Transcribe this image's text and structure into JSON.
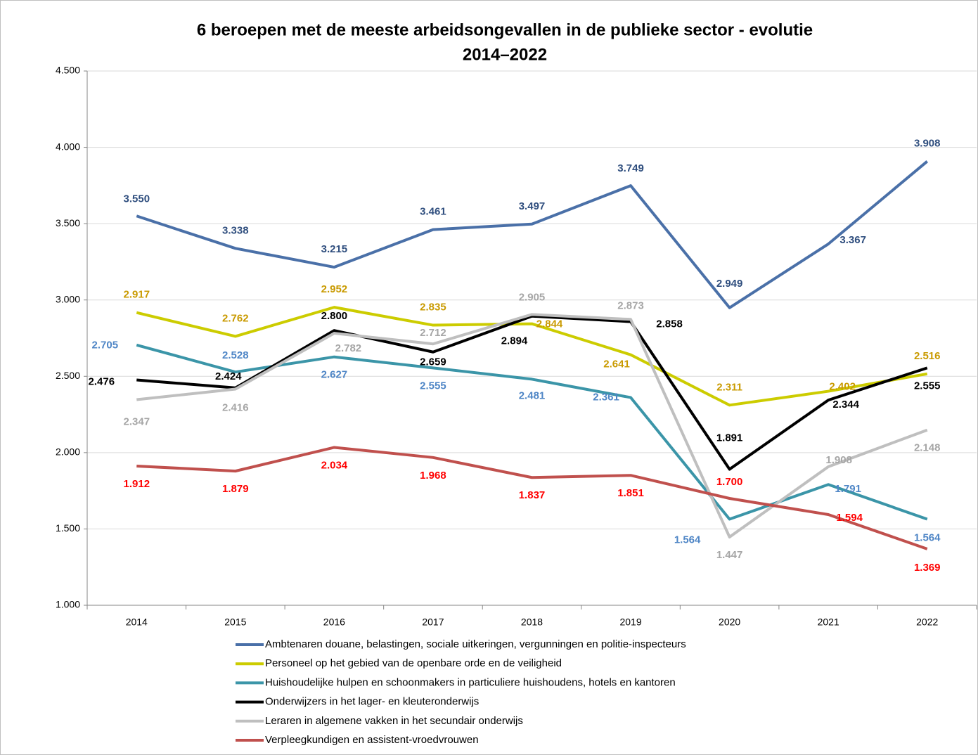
{
  "chart_data": {
    "type": "line",
    "title": [
      "6 beroepen met de meeste arbeidsongevallen in de publieke sector - evolutie",
      "2014–2022"
    ],
    "categories": [
      "2014",
      "2015",
      "2016",
      "2017",
      "2018",
      "2019",
      "2020",
      "2021",
      "2022"
    ],
    "ylim": [
      1000,
      4500
    ],
    "yticks": [
      {
        "value": 1000,
        "label": "1.000"
      },
      {
        "value": 1500,
        "label": "1.500"
      },
      {
        "value": 2000,
        "label": "2.000"
      },
      {
        "value": 2500,
        "label": "2.500"
      },
      {
        "value": 3000,
        "label": "3.000"
      },
      {
        "value": 3500,
        "label": "3.500"
      },
      {
        "value": 4000,
        "label": "4.000"
      },
      {
        "value": 4500,
        "label": "4.500"
      }
    ],
    "grid": true,
    "legend": "bottom",
    "series": [
      {
        "name": "Ambtenaren douane, belastingen, sociale uitkeringen, vergunningen en politie-inspecteurs",
        "color": "#4a70a8",
        "label_color": "#2f4e7e",
        "values": [
          3550,
          3338,
          3215,
          3461,
          3497,
          3749,
          2949,
          3367,
          3908
        ],
        "value_labels": [
          "3.550",
          "3.338",
          "3.215",
          "3.461",
          "3.497",
          "3.749",
          "2.949",
          "3.367",
          "3.908"
        ]
      },
      {
        "name": "Personeel op het gebied van de openbare orde en de veiligheid",
        "color": "#cccc00",
        "label_color": "#c99a00",
        "values": [
          2917,
          2762,
          2952,
          2835,
          2844,
          2641,
          2311,
          2402,
          2516
        ],
        "value_labels": [
          "2.917",
          "2.762",
          "2.952",
          "2.835",
          "2.844",
          "2.641",
          "2.311",
          "2.402",
          "2.516"
        ]
      },
      {
        "name": "Huishoudelijke hulpen en schoonmakers in particuliere huishoudens, hotels en kantoren",
        "color": "#3b95a8",
        "label_color": "#4f86c6",
        "values": [
          2705,
          2528,
          2627,
          2555,
          2481,
          2361,
          1564,
          1791,
          1564
        ],
        "value_labels": [
          "2.705",
          "2.528",
          "2.627",
          "2.555",
          "2.481",
          "2.361",
          "1.564",
          "1.791",
          "1.564"
        ]
      },
      {
        "name": "Onderwijzers  in het lager- en kleuteronderwijs",
        "color": "#000000",
        "label_color": "#000000",
        "values": [
          2476,
          2424,
          2800,
          2659,
          2894,
          2858,
          1891,
          2344,
          2555
        ],
        "value_labels": [
          "2.476",
          "2.424",
          "2.800",
          "2.659",
          "2.894",
          "2.858",
          "1.891",
          "2.344",
          "2.555"
        ]
      },
      {
        "name": "Leraren in algemene vakken in het secundair onderwijs",
        "color": "#bfbfbf",
        "label_color": "#a6a6a6",
        "values": [
          2347,
          2416,
          2782,
          2712,
          2905,
          2873,
          1447,
          1908,
          2148
        ],
        "value_labels": [
          "2.347",
          "2.416",
          "2.782",
          "2.712",
          "2.905",
          "2.873",
          "1.447",
          "1.908",
          "2.148"
        ]
      },
      {
        "name": "Verpleegkundigen en assistent-vroedvrouwen",
        "color": "#c0504d",
        "label_color": "#ff0000",
        "values": [
          1912,
          1879,
          2034,
          1968,
          1837,
          1851,
          1700,
          1594,
          1369
        ],
        "value_labels": [
          "1.912",
          "1.879",
          "2.034",
          "1.968",
          "1.837",
          "1.851",
          "1.700",
          "1.594",
          "1.369"
        ]
      }
    ]
  }
}
